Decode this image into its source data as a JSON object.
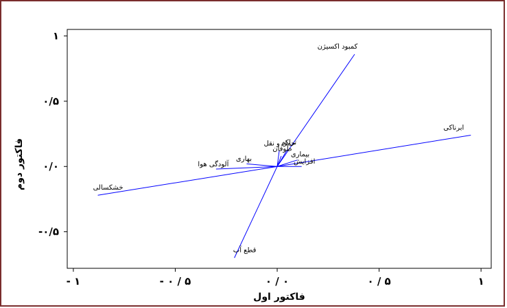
{
  "chart_data": {
    "type": "line",
    "title": "",
    "xlabel": "فاکتور اول",
    "ylabel": "فاکتور دوم",
    "xlim": [
      -1.03,
      1.05
    ],
    "ylim": [
      -0.78,
      1.05
    ],
    "x_tick_labels": [
      "- ۱",
      "- ۰ / ۵",
      "۰ / ۰",
      "۰ / ۵",
      "۱"
    ],
    "y_tick_labels": [
      "۱",
      "۰/۵",
      "۰/۰",
      "-۰/۵"
    ],
    "tick_values_x": [
      -1,
      -0.5,
      0,
      0.5,
      1
    ],
    "tick_values_y": [
      1,
      0.5,
      0,
      -0.5
    ],
    "line_color": "#0000ff",
    "frame_color": "#000000",
    "outer_border_color": "#7a2d2d",
    "series": [
      {
        "name": "کمبود اکسیژن",
        "x": [
          0.0,
          0.38
        ],
        "y": [
          0.0,
          0.86
        ]
      },
      {
        "name": "ابرناکی",
        "x": [
          0.0,
          0.95
        ],
        "y": [
          0.0,
          0.24
        ]
      },
      {
        "name": "خشکسالی",
        "x": [
          0.0,
          -0.88
        ],
        "y": [
          0.0,
          -0.22
        ]
      },
      {
        "name": "قطع آب",
        "x": [
          0.0,
          -0.21
        ],
        "y": [
          0.0,
          -0.7
        ]
      },
      {
        "name": "آلودگی هوا",
        "x": [
          0.0,
          -0.3
        ],
        "y": [
          0.0,
          -0.02
        ]
      },
      {
        "name": "بهاری",
        "x": [
          0.0,
          -0.15
        ],
        "y": [
          0.0,
          0.02
        ]
      },
      {
        "name": "تراکم",
        "x": [
          0.0,
          0.05
        ],
        "y": [
          0.0,
          0.13
        ]
      },
      {
        "name": "حمل و نقل",
        "x": [
          0.0,
          0.01
        ],
        "y": [
          0.0,
          0.12
        ]
      },
      {
        "name": "طوفان",
        "x": [
          0.0,
          0.02
        ],
        "y": [
          0.0,
          0.08
        ]
      },
      {
        "name": "بیماری",
        "x": [
          0.0,
          0.1
        ],
        "y": [
          0.0,
          0.05
        ]
      },
      {
        "name": "افزایش",
        "x": [
          0.0,
          0.12
        ],
        "y": [
          0.0,
          0.0
        ]
      }
    ]
  }
}
